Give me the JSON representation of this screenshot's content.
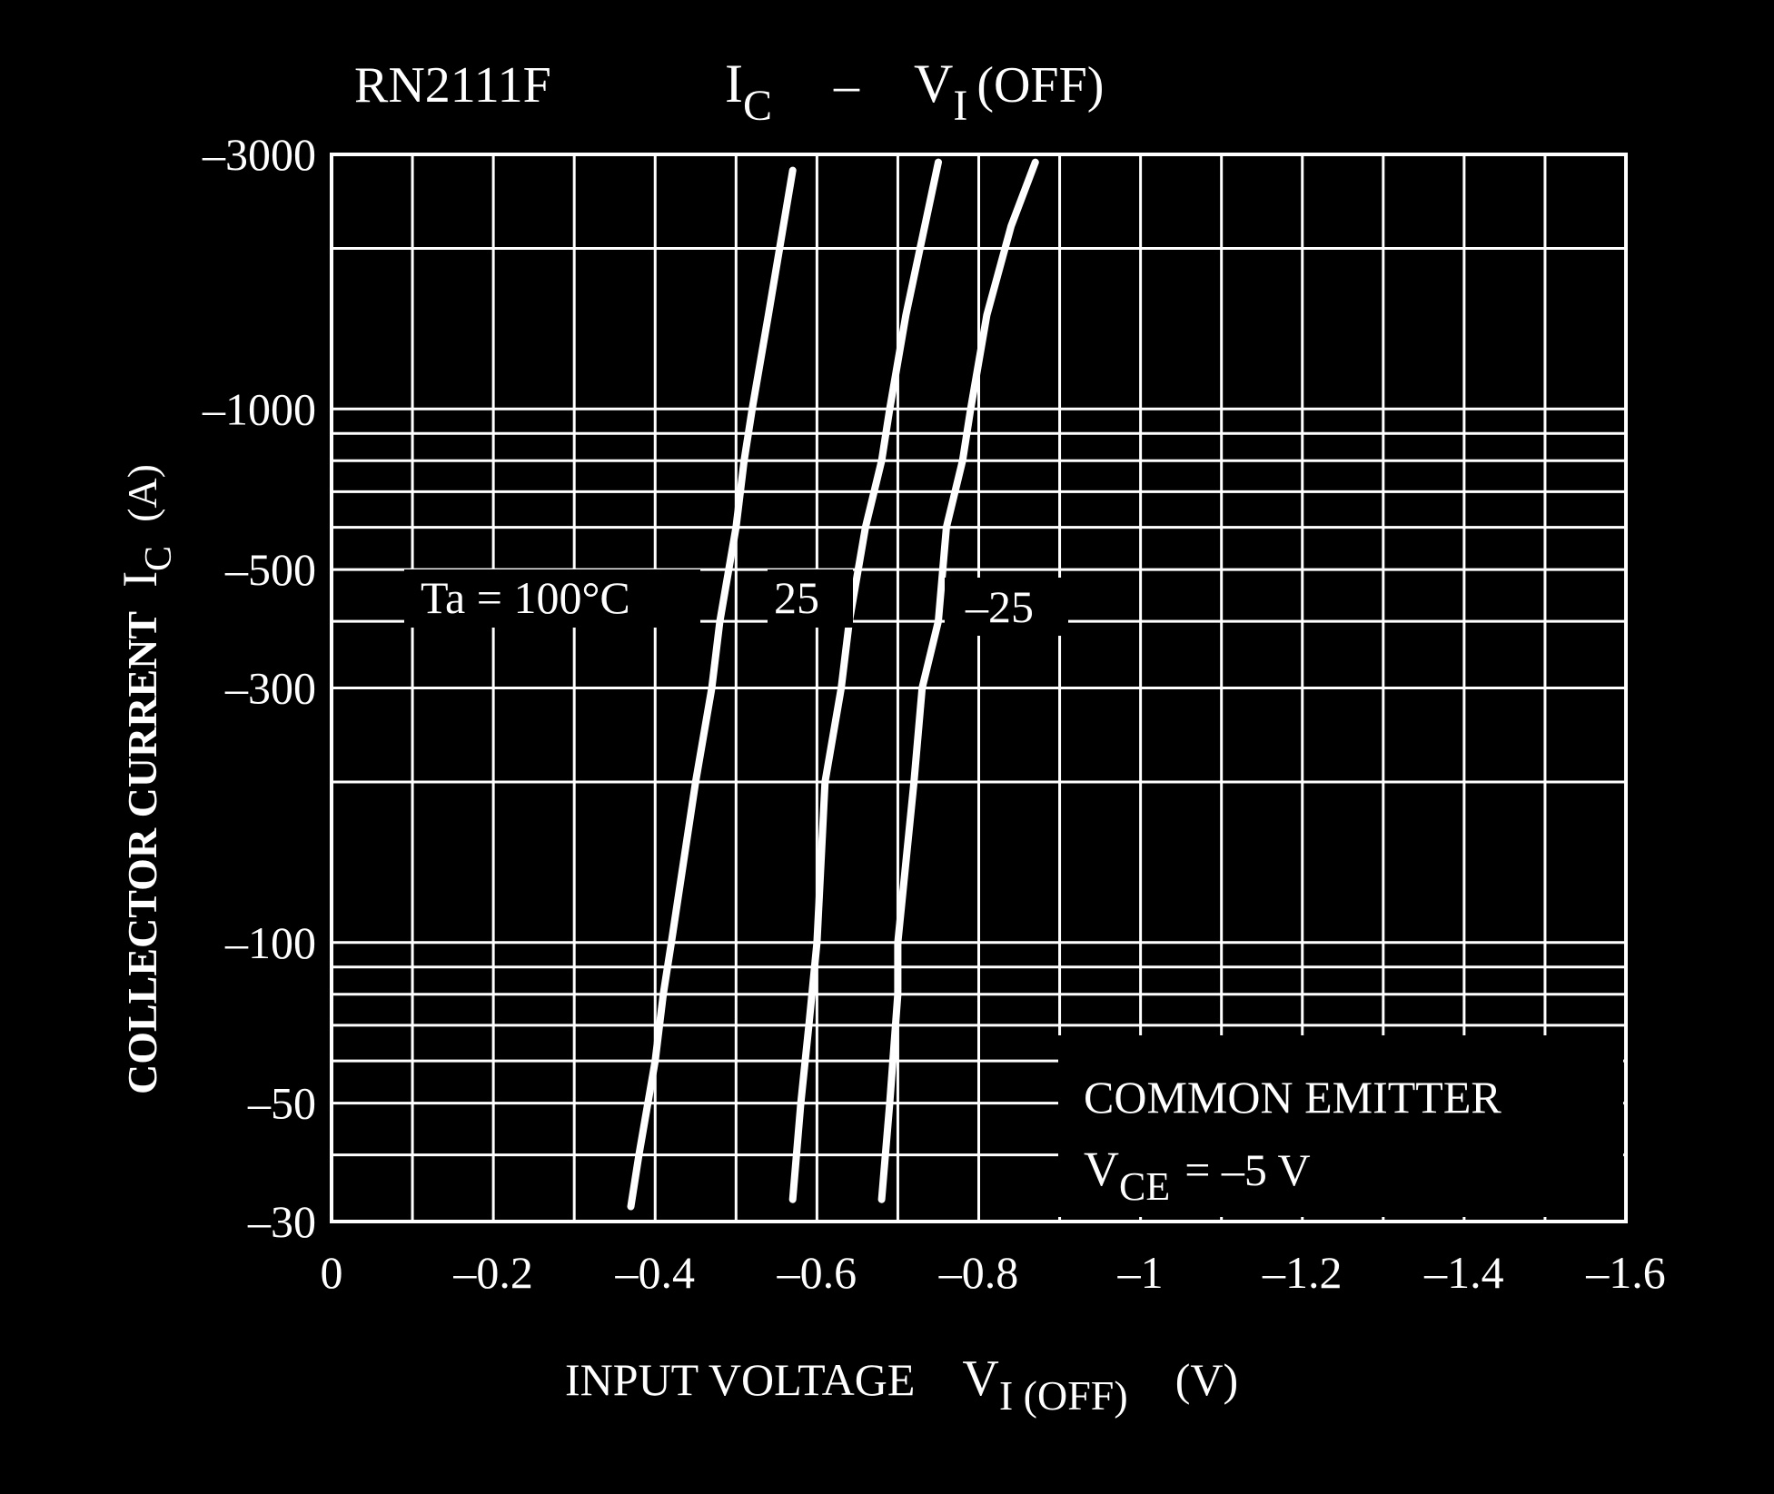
{
  "colors": {
    "background": "#000000",
    "foreground": "#ffffff"
  },
  "title": {
    "part": "RN2111F",
    "ic_main": "I",
    "ic_sub": "C",
    "dash": "–",
    "vi_main": "V",
    "vi_sub": "I",
    "vi_paren": "(OFF)"
  },
  "ylabel": {
    "main": "COLLECTOR CURRENT",
    "sym": "I",
    "sub": "C",
    "unit": "(A)"
  },
  "xlabel": {
    "main": "INPUT VOLTAGE",
    "sym": "V",
    "sub": "I (OFF)",
    "unit": "(V)"
  },
  "annotation": {
    "line1": "COMMON EMITTER",
    "vce_main": "V",
    "vce_sub": "CE",
    "vce_value": "= –5 V"
  },
  "chart_data": {
    "type": "line",
    "title": "RN2111F IC – VI (OFF)",
    "xlabel": "INPUT VOLTAGE VI (OFF) (V)",
    "ylabel": "COLLECTOR CURRENT IC (A)",
    "xscale": "linear",
    "yscale": "log",
    "xlim": [
      0,
      -1.6
    ],
    "ylim": [
      -30,
      -3000
    ],
    "grid": true,
    "x_ticks": [
      {
        "value": 0,
        "label": "0"
      },
      {
        "value": -0.2,
        "label": "–0.2"
      },
      {
        "value": -0.4,
        "label": "–0.4"
      },
      {
        "value": -0.6,
        "label": "–0.6"
      },
      {
        "value": -0.8,
        "label": "–0.8"
      },
      {
        "value": -1,
        "label": "–1"
      },
      {
        "value": -1.2,
        "label": "–1.2"
      },
      {
        "value": -1.4,
        "label": "–1.4"
      },
      {
        "value": -1.6,
        "label": "–1.6"
      }
    ],
    "y_ticks": [
      {
        "value": -30,
        "label": "–30"
      },
      {
        "value": -50,
        "label": "–50"
      },
      {
        "value": -100,
        "label": "–100"
      },
      {
        "value": -300,
        "label": "–300"
      },
      {
        "value": -500,
        "label": "–500"
      },
      {
        "value": -1000,
        "label": "–1000"
      },
      {
        "value": -3000,
        "label": "–3000"
      }
    ],
    "x_grid": [
      0,
      -0.1,
      -0.2,
      -0.3,
      -0.4,
      -0.5,
      -0.6,
      -0.7,
      -0.8,
      -0.9,
      -1.0,
      -1.1,
      -1.2,
      -1.3,
      -1.4,
      -1.5,
      -1.6
    ],
    "y_grid": [
      -30,
      -40,
      -50,
      -60,
      -70,
      -80,
      -90,
      -100,
      -200,
      -300,
      -400,
      -500,
      -600,
      -700,
      -800,
      -900,
      -1000,
      -2000,
      -3000
    ],
    "series": [
      {
        "name": "Ta = 100°C",
        "points": [
          [
            -0.37,
            -32
          ],
          [
            -0.38,
            -40
          ],
          [
            -0.4,
            -60
          ],
          [
            -0.41,
            -80
          ],
          [
            -0.42,
            -100
          ],
          [
            -0.45,
            -200
          ],
          [
            -0.47,
            -300
          ],
          [
            -0.48,
            -400
          ],
          [
            -0.5,
            -600
          ],
          [
            -0.51,
            -800
          ],
          [
            -0.52,
            -1000
          ],
          [
            -0.54,
            -1500
          ],
          [
            -0.57,
            -2800
          ]
        ]
      },
      {
        "name": "25",
        "points": [
          [
            -0.57,
            -33
          ],
          [
            -0.58,
            -50
          ],
          [
            -0.59,
            -70
          ],
          [
            -0.6,
            -100
          ],
          [
            -0.61,
            -200
          ],
          [
            -0.63,
            -300
          ],
          [
            -0.64,
            -400
          ],
          [
            -0.66,
            -600
          ],
          [
            -0.68,
            -800
          ],
          [
            -0.69,
            -1000
          ],
          [
            -0.71,
            -1500
          ],
          [
            -0.75,
            -2900
          ]
        ]
      },
      {
        "name": "–25",
        "points": [
          [
            -0.68,
            -33
          ],
          [
            -0.69,
            -50
          ],
          [
            -0.7,
            -80
          ],
          [
            -0.7,
            -100
          ],
          [
            -0.72,
            -200
          ],
          [
            -0.73,
            -300
          ],
          [
            -0.75,
            -400
          ],
          [
            -0.76,
            -600
          ],
          [
            -0.78,
            -800
          ],
          [
            -0.79,
            -1000
          ],
          [
            -0.81,
            -1500
          ],
          [
            -0.84,
            -2200
          ],
          [
            -0.87,
            -2900
          ]
        ]
      }
    ]
  }
}
